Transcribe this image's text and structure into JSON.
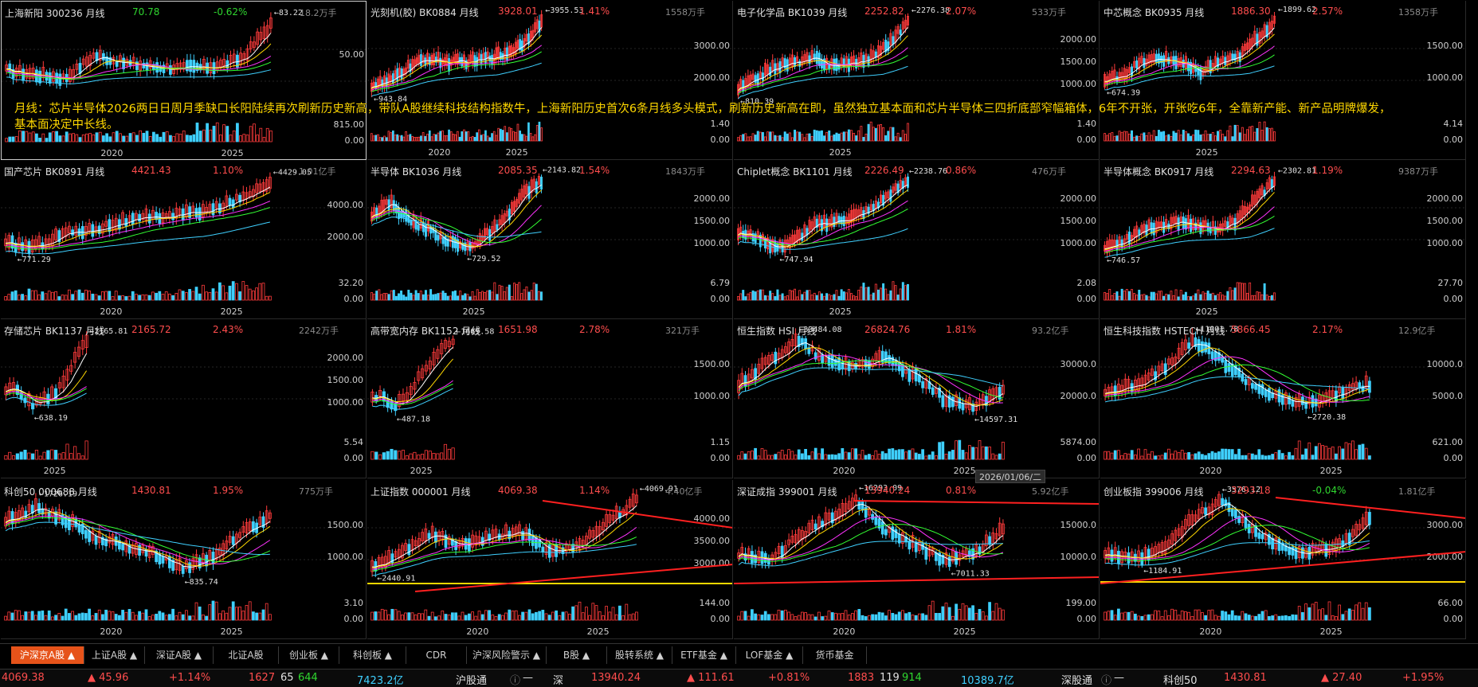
{
  "annotation": "月线：芯片半导体2026两日日周月季缺口长阳陆续再次刷新历史新高，带队A股继续科技结构指数牛，上海新阳历史首次6条月线多头模式，刷新历史新高在即，虽然独立基本面和芯片半导体三四折底部窄幅箱体，6年不开张，开张吃6年，全靠新产能、新产品明牌爆发，基本面决定中长线。",
  "date_box": "2026/01/06/二",
  "colors": {
    "up": "#ff3b3b",
    "down": "#3fd0ff",
    "ma5": "#ffffff",
    "ma10": "#ffd800",
    "ma20": "#ff33ff",
    "ma30": "#33ff33",
    "ma60": "#3fd0ff",
    "annotation": "#ffd800",
    "tab_active": "#e6531a"
  },
  "panels": [
    {
      "name": "上海新阳 300236 月线",
      "price": "70.78",
      "pct": "-0.62%",
      "vol": "18.2万手",
      "hi": "83.22",
      "lo": "",
      "ticks": [
        "50.00"
      ],
      "vticks": [
        "815.00",
        "0.00"
      ],
      "years": [
        "2020",
        "2025"
      ],
      "price_up": false,
      "pct_up": false,
      "selected": true
    },
    {
      "name": "光刻机(胶) BK0884 月线",
      "price": "3928.01",
      "pct": "1.41%",
      "vol": "1558万手",
      "hi": "3955.53",
      "lo": "943.84",
      "ticks": [
        "3000.00",
        "2000.00"
      ],
      "vticks": [
        "1.40",
        "0.00"
      ],
      "years": [
        "2020",
        "2025"
      ],
      "price_up": true,
      "pct_up": true
    },
    {
      "name": "电子化学品 BK1039 月线",
      "price": "2252.82",
      "pct": "2.07%",
      "vol": "533万手",
      "hi": "2276.38",
      "lo": "810.39",
      "ticks": [
        "2000.00",
        "1500.00",
        "1000.00"
      ],
      "vticks": [
        "1.40",
        "0.00"
      ],
      "years": [
        "2025"
      ],
      "price_up": true,
      "pct_up": true
    },
    {
      "name": "中芯概念 BK0935 月线",
      "price": "1886.30",
      "pct": "2.57%",
      "vol": "1358万手",
      "hi": "1899.62",
      "lo": "674.39",
      "ticks": [
        "1500.00",
        "1000.00"
      ],
      "vticks": [
        "4.14",
        "0.00"
      ],
      "years": [
        "2025"
      ],
      "price_up": true,
      "pct_up": true
    },
    {
      "name": "国产芯片 BK0891 月线",
      "price": "4421.43",
      "pct": "1.10%",
      "vol": "1.01亿手",
      "hi": "4429.05",
      "lo": "771.29",
      "ticks": [
        "4000.00",
        "2000.00"
      ],
      "vticks": [
        "32.20",
        "0.00"
      ],
      "years": [
        "2020",
        "2025"
      ],
      "price_up": true,
      "pct_up": true
    },
    {
      "name": "半导体 BK1036 月线",
      "price": "2085.35",
      "pct": "1.54%",
      "vol": "1843万手",
      "hi": "2143.82",
      "lo": "729.52",
      "ticks": [
        "2000.00",
        "1500.00",
        "1000.00"
      ],
      "vticks": [
        "6.79",
        "0.00"
      ],
      "years": [
        "2025"
      ],
      "price_up": true,
      "pct_up": true
    },
    {
      "name": "Chiplet概念 BK1101 月线",
      "price": "2226.49",
      "pct": "0.86%",
      "vol": "476万手",
      "hi": "2238.76",
      "lo": "747.94",
      "ticks": [
        "2000.00",
        "1500.00",
        "1000.00"
      ],
      "vticks": [
        "2.08",
        "0.00"
      ],
      "years": [
        "2025"
      ],
      "price_up": true,
      "pct_up": true
    },
    {
      "name": "半导体概念 BK0917 月线",
      "price": "2294.63",
      "pct": "1.19%",
      "vol": "9387万手",
      "hi": "2302.81",
      "lo": "746.57",
      "ticks": [
        "2000.00",
        "1500.00",
        "1000.00"
      ],
      "vticks": [
        "27.70",
        "0.00"
      ],
      "years": [
        "2025"
      ],
      "price_up": true,
      "pct_up": true
    },
    {
      "name": "存储芯片 BK1137 月线",
      "price": "2165.72",
      "pct": "2.43%",
      "vol": "2242万手",
      "hi": "2165.81",
      "lo": "638.19",
      "ticks": [
        "2000.00",
        "1500.00",
        "1000.00"
      ],
      "vticks": [
        "5.54",
        "0.00"
      ],
      "years": [
        "2025"
      ],
      "price_up": true,
      "pct_up": true
    },
    {
      "name": "高带宽内存 BK1152 月线",
      "price": "1651.98",
      "pct": "2.78%",
      "vol": "321万手",
      "hi": "1669.58",
      "lo": "487.18",
      "ticks": [
        "1500.00",
        "1000.00"
      ],
      "vticks": [
        "1.15",
        "0.00"
      ],
      "years": [
        "2025"
      ],
      "price_up": true,
      "pct_up": true
    },
    {
      "name": "恒生指数 HSI 月线",
      "price": "26824.76",
      "pct": "1.81%",
      "vol": "93.2亿手",
      "hi": "33484.08",
      "lo": "14597.31",
      "ticks": [
        "30000.0",
        "20000.0"
      ],
      "vticks": [
        "5874.00",
        "0.00"
      ],
      "years": [
        "2020",
        "2025"
      ],
      "price_up": true,
      "pct_up": true
    },
    {
      "name": "恒生科技指数 HSTECH 月线",
      "price": "5866.45",
      "pct": "2.17%",
      "vol": "12.9亿手",
      "hi": "11001.78",
      "lo": "2720.38",
      "ticks": [
        "10000.0",
        "5000.0"
      ],
      "vticks": [
        "621.00",
        "0.00"
      ],
      "years": [
        "2020",
        "2025"
      ],
      "price_up": true,
      "pct_up": true
    },
    {
      "name": "科创50 000688 月线",
      "price": "1430.81",
      "pct": "1.95%",
      "vol": "775万手",
      "hi": "1726.19",
      "lo": "835.74",
      "ticks": [
        "1500.00",
        "1000.00"
      ],
      "vticks": [
        "3.10",
        "0.00"
      ],
      "years": [
        "2020",
        "2025"
      ],
      "price_up": true,
      "pct_up": true
    },
    {
      "name": "上证指数 000001 月线",
      "price": "4069.38",
      "pct": "1.14%",
      "vol": "4.40亿手",
      "hi": "4069.91",
      "lo": "2440.91",
      "ticks": [
        "4000.00",
        "3500.00",
        "3000.00"
      ],
      "vticks": [
        "144.00",
        "0.00"
      ],
      "years": [
        "2020",
        "2025"
      ],
      "price_up": true,
      "pct_up": true
    },
    {
      "name": "深证成指 399001 月线",
      "price": "13940.24",
      "pct": "0.81%",
      "vol": "5.92亿手",
      "hi": "16293.09",
      "lo": "7011.33",
      "ticks": [
        "15000.0",
        "10000.0"
      ],
      "vticks": [
        "199.00",
        "0.00"
      ],
      "years": [
        "2020",
        "2025"
      ],
      "price_up": true,
      "pct_up": true
    },
    {
      "name": "创业板指 399006 月线",
      "price": "3293.18",
      "pct": "-0.04%",
      "vol": "1.81亿手",
      "hi": "3576.12",
      "lo": "1184.91",
      "ticks": [
        "3000.00",
        "2000.00"
      ],
      "vticks": [
        "66.00",
        "0.00"
      ],
      "years": [
        "2020",
        "2025"
      ],
      "price_up": true,
      "pct_up": false
    }
  ],
  "tabs": [
    {
      "label": "沪深京A股 ▲",
      "active": true
    },
    {
      "label": "上证A股 ▲",
      "active": false
    },
    {
      "label": "深证A股 ▲",
      "active": false
    },
    {
      "label": "北证A股",
      "active": false
    },
    {
      "label": "创业板 ▲",
      "active": false
    },
    {
      "label": "科创板 ▲",
      "active": false
    },
    {
      "label": "CDR",
      "active": false
    },
    {
      "label": "沪深风险警示 ▲",
      "active": false
    },
    {
      "label": "B股 ▲",
      "active": false
    },
    {
      "label": "股转系统 ▲",
      "active": false
    },
    {
      "label": "ETF基金 ▲",
      "active": false
    },
    {
      "label": "LOF基金 ▲",
      "active": false
    },
    {
      "label": "货币基金",
      "active": false
    }
  ],
  "status": {
    "sh_index": "4069.38",
    "sh_chg": "▲ 45.96",
    "sh_pct": "+1.14%",
    "sh_up": "1627",
    "sh_flat": "65",
    "sh_down": "644",
    "sh_amt": "7423.2亿",
    "hgt": "沪股通",
    "hgt_val": "—",
    "sz_label": "深",
    "sz_index": "13940.24",
    "sz_chg": "▲ 111.61",
    "sz_pct": "+0.81%",
    "sz_up": "1883",
    "sz_flat": "119",
    "sz_down": "914",
    "sz_amt": "10389.7亿",
    "sgt": "深股通",
    "sgt_val": "—",
    "kc_label": "科创50",
    "kc_index": "1430.81",
    "kc_chg": "▲ 27.40",
    "kc_pct": "+1.95%"
  }
}
